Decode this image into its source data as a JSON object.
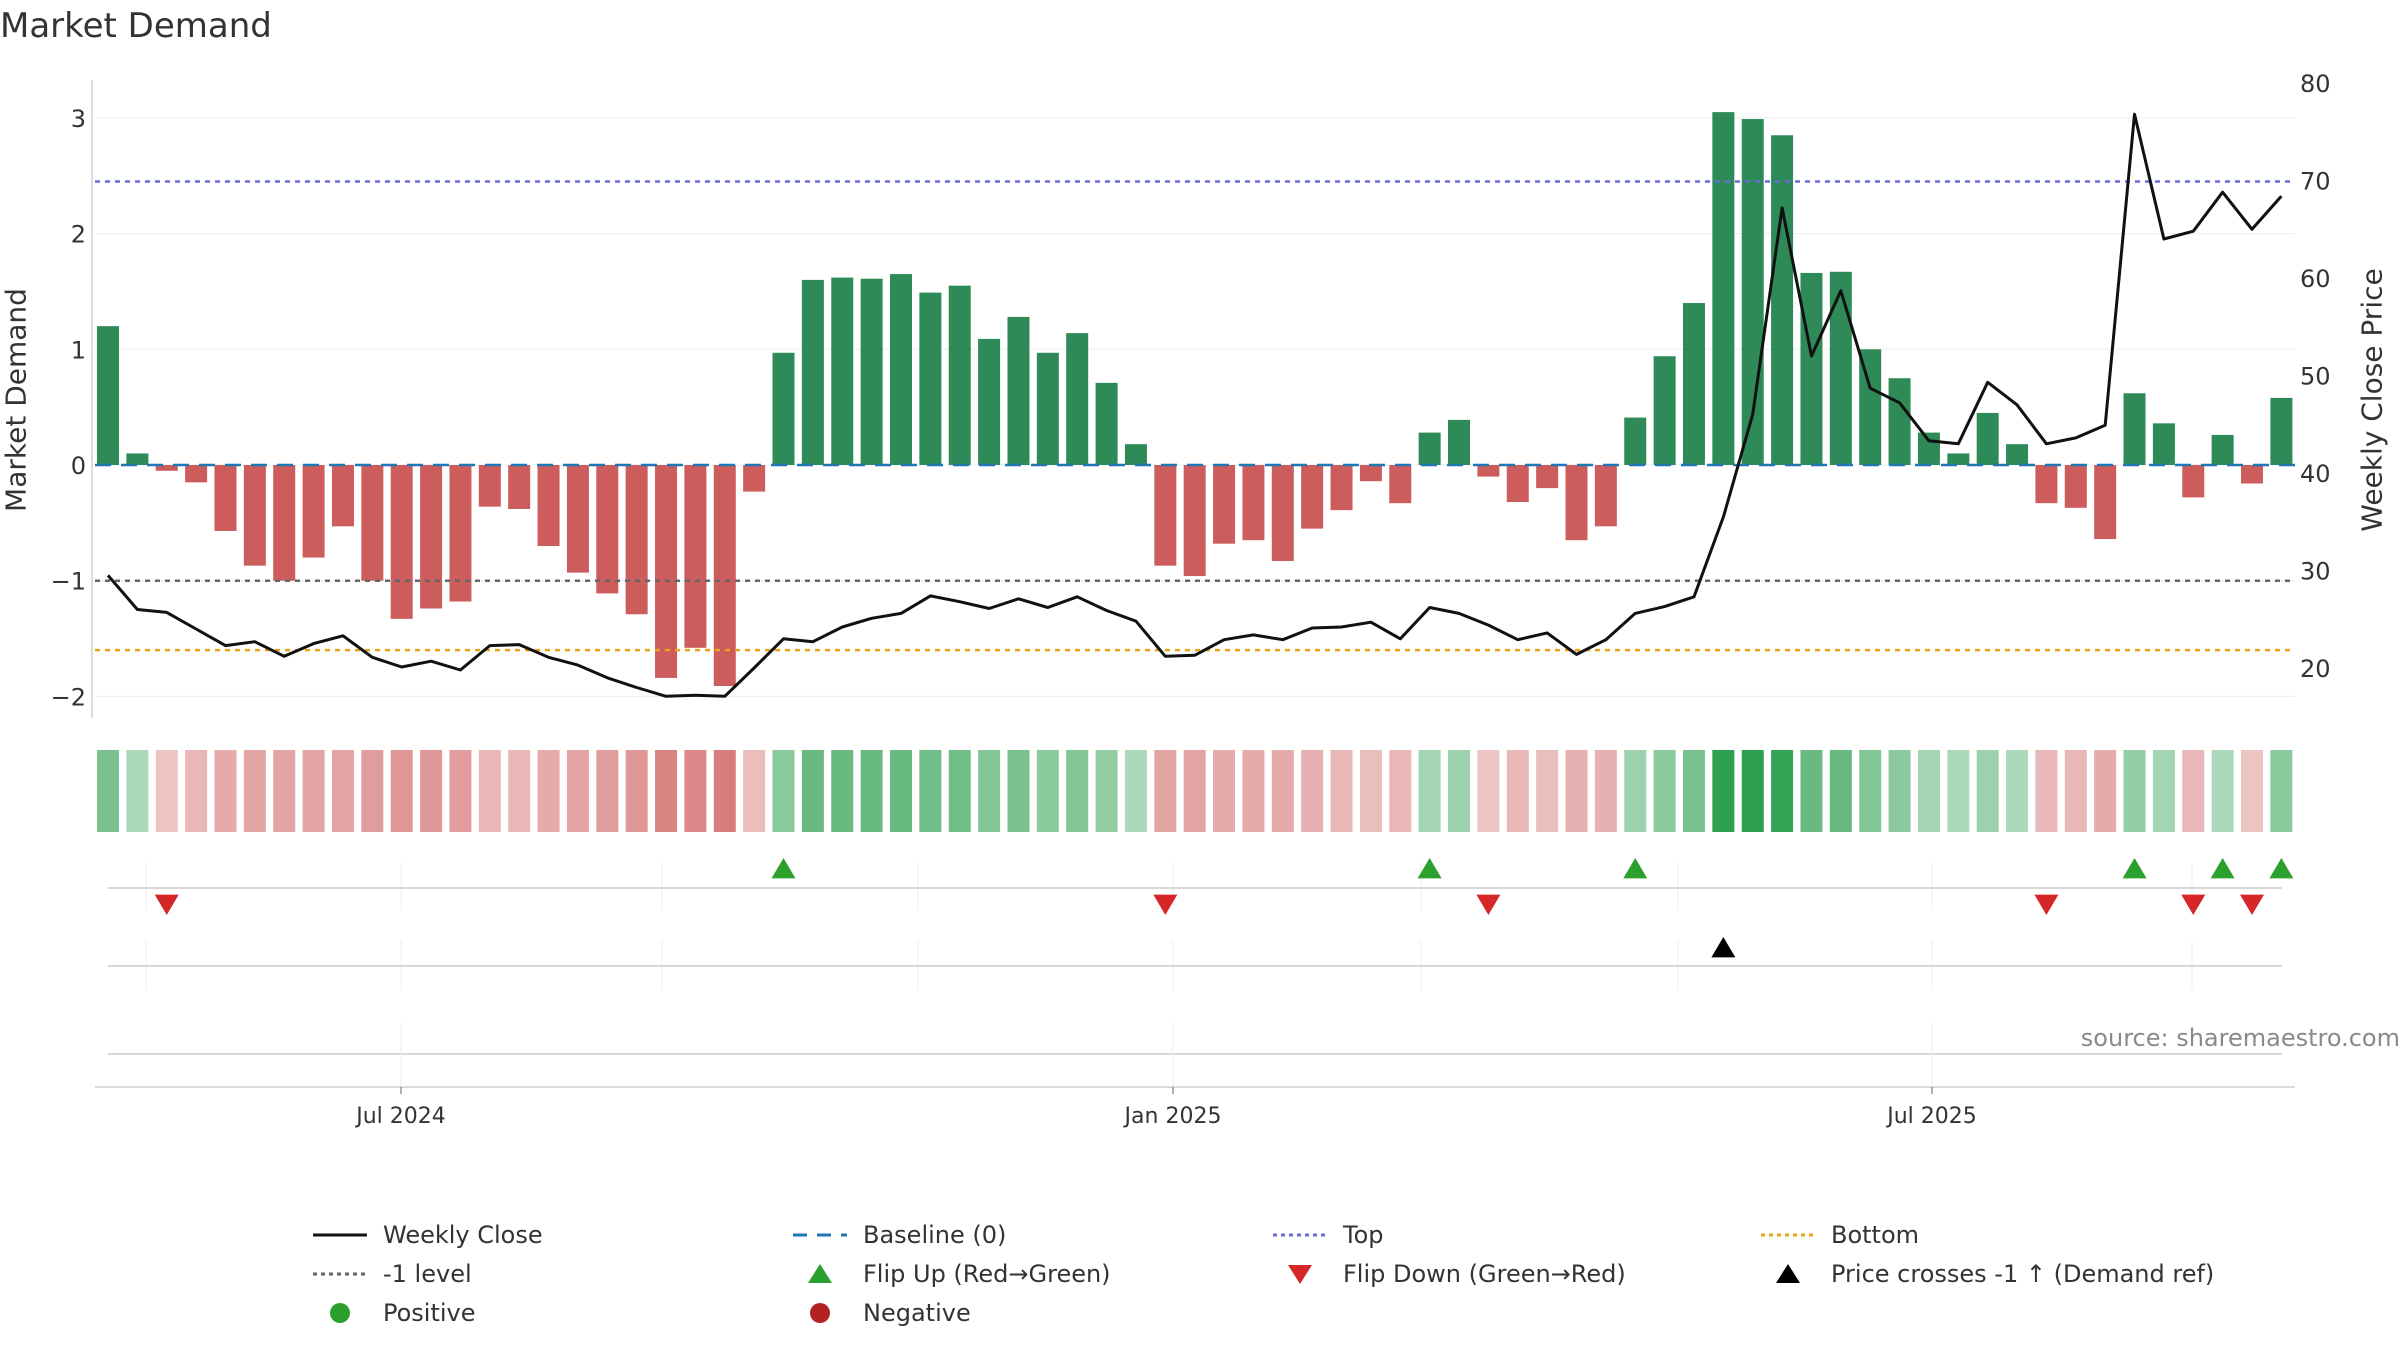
{
  "title": "Market Demand",
  "source_text": "source: sharemaestro.com",
  "colors": {
    "positive_bar": "#2e8b57",
    "negative_bar": "#cd5c5c",
    "price_line": "#111111",
    "baseline": "#1f77b4",
    "top": "#6a6ad8",
    "bottom": "#e8a317",
    "minus1": "#666666",
    "flip_up": "#2ca02c",
    "flip_down": "#d62728",
    "cross": "#000000",
    "positive_dot": "#2ca02c",
    "negative_dot": "#b22222"
  },
  "chart_data": {
    "type": "bar",
    "title": "Market Demand",
    "ylabel": "Market Demand",
    "y2label": "Weekly Close Price",
    "ylim": [
      -2.2,
      3.25
    ],
    "y2lim": [
      14.7,
      81.3
    ],
    "yticks": [
      "3",
      "2",
      "1",
      "0",
      "−1",
      "−2"
    ],
    "y2ticks": [
      "80",
      "70",
      "60",
      "50",
      "40",
      "30",
      "20"
    ],
    "xticks": [
      "Jul 2024",
      "Jan 2025",
      "Jul 2025"
    ],
    "levels": {
      "top": 2.45,
      "bottom": -1.6,
      "minus1": -1.0,
      "baseline": 0
    },
    "demand": [
      1.2,
      0.1,
      -0.05,
      -0.15,
      -0.57,
      -0.87,
      -1.0,
      -0.8,
      -0.53,
      -1.0,
      -1.33,
      -1.24,
      -1.18,
      -0.36,
      -0.38,
      -0.7,
      -0.93,
      -1.11,
      -1.29,
      -1.84,
      -1.58,
      -1.91,
      -0.23,
      0.97,
      1.6,
      1.62,
      1.61,
      1.65,
      1.49,
      1.55,
      1.09,
      1.28,
      0.97,
      1.14,
      0.71,
      0.18,
      -0.87,
      -0.96,
      -0.68,
      -0.65,
      -0.83,
      -0.55,
      -0.39,
      -0.14,
      -0.33,
      0.28,
      0.39,
      -0.1,
      -0.32,
      -0.2,
      -0.65,
      -0.53,
      0.41,
      0.94,
      1.4,
      3.05,
      2.99,
      2.85,
      1.66,
      1.67,
      1.0,
      0.75,
      0.28,
      0.1,
      0.45,
      0.18,
      -0.33,
      -0.37,
      -0.64,
      0.62,
      0.36,
      -0.28,
      0.26,
      -0.16,
      0.58
    ],
    "close": [
      29.5,
      26.0,
      25.7,
      24.0,
      22.3,
      22.7,
      21.2,
      22.5,
      23.3,
      21.1,
      20.1,
      20.7,
      19.8,
      22.3,
      22.4,
      21.1,
      20.3,
      19.0,
      18.0,
      17.1,
      17.2,
      17.1,
      20.0,
      23.0,
      22.7,
      24.2,
      25.1,
      25.6,
      27.4,
      26.8,
      26.1,
      27.1,
      26.2,
      27.3,
      25.9,
      24.8,
      21.2,
      21.3,
      22.9,
      23.4,
      22.9,
      24.1,
      24.2,
      24.7,
      23.0,
      26.2,
      25.6,
      24.4,
      22.9,
      23.6,
      21.4,
      22.9,
      25.6,
      26.3,
      27.3,
      35.5,
      46.0,
      67.2,
      52.0,
      58.7,
      48.7,
      47.2,
      43.3,
      43.0,
      49.3,
      47.0,
      43.0,
      43.6,
      44.9,
      76.8,
      64.0,
      64.8,
      68.8,
      65.0,
      68.4
    ],
    "shade_intensity": [
      0.55,
      0.25,
      0.2,
      0.3,
      0.4,
      0.45,
      0.45,
      0.45,
      0.45,
      0.5,
      0.55,
      0.55,
      0.5,
      0.3,
      0.3,
      0.4,
      0.45,
      0.5,
      0.55,
      0.7,
      0.65,
      0.75,
      0.25,
      0.45,
      0.65,
      0.65,
      0.65,
      0.65,
      0.6,
      0.6,
      0.5,
      0.55,
      0.45,
      0.5,
      0.4,
      0.25,
      0.45,
      0.45,
      0.4,
      0.4,
      0.4,
      0.35,
      0.3,
      0.25,
      0.3,
      0.3,
      0.35,
      0.2,
      0.3,
      0.25,
      0.35,
      0.35,
      0.35,
      0.45,
      0.55,
      1.0,
      1.0,
      0.95,
      0.65,
      0.65,
      0.5,
      0.45,
      0.3,
      0.25,
      0.35,
      0.25,
      0.3,
      0.3,
      0.4,
      0.4,
      0.3,
      0.3,
      0.25,
      0.2,
      0.45
    ],
    "flip_up_weeks": [
      23,
      45,
      52,
      69,
      72,
      74
    ],
    "flip_down_weeks": [
      2,
      36,
      47,
      66,
      71,
      73
    ],
    "cross_weeks": [
      55
    ],
    "legend": [
      {
        "label": "Weekly Close",
        "symbol": "line-solid",
        "color_key": "price_line"
      },
      {
        "label": "Baseline (0)",
        "symbol": "line-dash",
        "color_key": "baseline"
      },
      {
        "label": "Top",
        "symbol": "line-dot",
        "color_key": "top"
      },
      {
        "label": "Bottom",
        "symbol": "line-dot",
        "color_key": "bottom"
      },
      {
        "label": "-1 level",
        "symbol": "line-dot",
        "color_key": "minus1"
      },
      {
        "label": "Flip Up (Red→Green)",
        "symbol": "tri-up",
        "color_key": "flip_up"
      },
      {
        "label": "Flip Down (Green→Red)",
        "symbol": "tri-down",
        "color_key": "flip_down"
      },
      {
        "label": "Price crosses -1 ↑ (Demand ref)",
        "symbol": "tri-up",
        "color_key": "cross"
      },
      {
        "label": "Positive",
        "symbol": "dot",
        "color_key": "positive_dot"
      },
      {
        "label": "Negative",
        "symbol": "dot",
        "color_key": "negative_dot"
      }
    ]
  }
}
